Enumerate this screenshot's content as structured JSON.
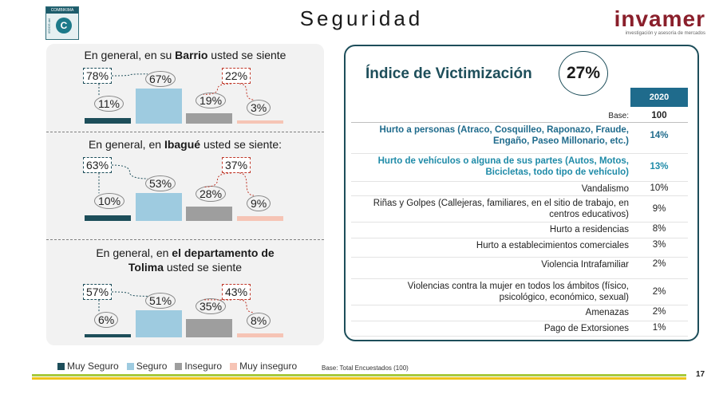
{
  "header": {
    "title": "Seguridad",
    "brand_name": "invamer",
    "brand_tagline": "investigación y asesoría de mercados",
    "left_logo_top": "COMBIKIMA",
    "left_logo_side": "IEDOS del",
    "left_logo_letter": "C"
  },
  "colors": {
    "muy_seguro": "#1d4e5a",
    "seguro": "#9ecbe0",
    "inseguro": "#9e9e9e",
    "muy_inseguro": "#f6c4b5",
    "accent": "#1f6b8c"
  },
  "chart_data": [
    {
      "type": "bar",
      "title_parts": [
        "En general, en su ",
        "Barrio",
        " usted se siente"
      ],
      "categories": [
        "Muy Seguro",
        "Seguro",
        "Inseguro",
        "Muy inseguro"
      ],
      "values": [
        11,
        67,
        19,
        3
      ],
      "group_totals": {
        "seguro": 78,
        "inseguro": 22
      }
    },
    {
      "type": "bar",
      "title_parts": [
        "En general, en ",
        "Ibagué",
        " usted se siente:"
      ],
      "categories": [
        "Muy Seguro",
        "Seguro",
        "Inseguro",
        "Muy inseguro"
      ],
      "values": [
        10,
        53,
        28,
        9
      ],
      "group_totals": {
        "seguro": 63,
        "inseguro": 37
      }
    },
    {
      "type": "bar",
      "title_parts": [
        "En general, en ",
        "el departamento de Tolima",
        " usted se siente"
      ],
      "categories": [
        "Muy Seguro",
        "Seguro",
        "Inseguro",
        "Muy inseguro"
      ],
      "values": [
        6,
        51,
        35,
        8
      ],
      "group_totals": {
        "seguro": 57,
        "inseguro": 43
      }
    },
    {
      "type": "table",
      "title": "Índice de Victimización",
      "value": "27%",
      "column_header": "2020",
      "base_label": "Base:",
      "base_value": "100",
      "rows": [
        {
          "label": "Hurto a personas (Atraco, Cosquilleo, Raponazo, Fraude, Engaño, Paseo Millonario, etc.)",
          "value": "14%"
        },
        {
          "label": "Hurto de vehículos o alguna de sus partes (Autos, Motos, Bicicletas, todo tipo de vehículo)",
          "value": "13%"
        },
        {
          "label": "Vandalismo",
          "value": "10%"
        },
        {
          "label": "Riñas y Golpes (Callejeras, familiares, en el sitio de trabajo, en centros educativos)",
          "value": "9%"
        },
        {
          "label": "Hurto a residencias",
          "value": "8%"
        },
        {
          "label": "Hurto a establecimientos comerciales",
          "value": "3%"
        },
        {
          "label": "Violencia Intrafamiliar",
          "value": "2%"
        },
        {
          "label": "Violencias contra la mujer en todos los ámbitos (físico, psicológico, económico, sexual)",
          "value": "2%"
        },
        {
          "label": "Amenazas",
          "value": "2%"
        },
        {
          "label": "Pago de Extorsiones",
          "value": "1%"
        }
      ]
    }
  ],
  "legend": {
    "items": [
      "Muy Seguro",
      "Seguro",
      "Inseguro",
      "Muy inseguro"
    ]
  },
  "footer": {
    "base_note": "Base: Total Encuestados (100)",
    "page_number": "17"
  }
}
